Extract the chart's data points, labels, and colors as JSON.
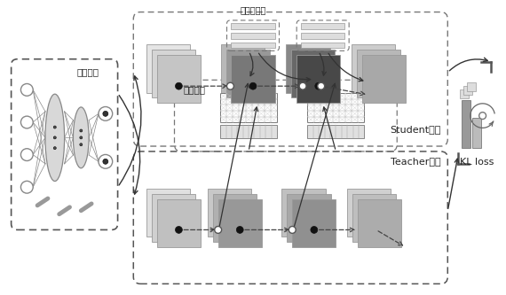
{
  "bg_color": "#ffffff",
  "fig_width": 5.7,
  "fig_height": 3.33,
  "dpi": 100,
  "gray_light": "#eeeeee",
  "gray_mid": "#bbbbbb",
  "gray_dark": "#888888",
  "gray_darker": "#666666",
  "kl_label": "KL loss",
  "calib_label": "校正模块",
  "teacher_label": "Teacher模块",
  "conduct_label": "传导模块",
  "student_label": "Student模块",
  "selftemp_label": "自温故模块"
}
